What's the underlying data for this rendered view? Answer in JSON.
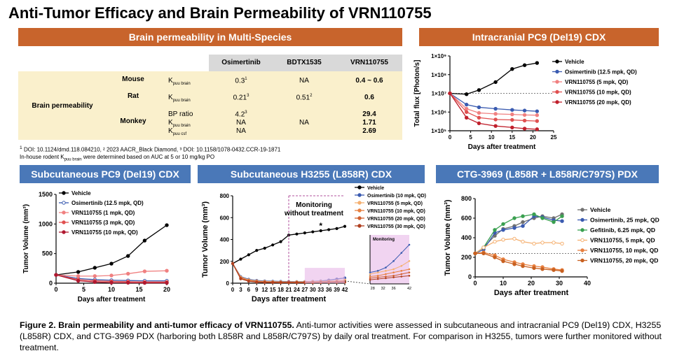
{
  "title": "Anti-Tumor Efficacy and Brain Permeability of VRN110755",
  "table": {
    "header": "Brain permeability in Multi-Species",
    "columns": [
      "Osimertinib",
      "BDTX1535",
      "VRN110755"
    ],
    "row_group": "Brain permeability",
    "rows": [
      {
        "species": "Mouse",
        "param": "K",
        "sub": "puu brain",
        "vals": [
          "0.3",
          "NA",
          "0.4 ~ 0.6"
        ],
        "sups": [
          "1",
          "",
          ""
        ]
      },
      {
        "species": "Rat",
        "param": "K",
        "sub": "puu brain",
        "vals": [
          "0.21",
          "0.51",
          "0.6"
        ],
        "sups": [
          "3",
          "2",
          ""
        ]
      },
      {
        "species": "Monkey",
        "param": "BP ratio",
        "sub": "",
        "vals": [
          "4.2",
          "",
          "29.4"
        ],
        "sups": [
          "3",
          "",
          ""
        ]
      },
      {
        "species": "",
        "param": "K",
        "sub": "puu brain",
        "vals": [
          "NA",
          "NA",
          "1.71"
        ],
        "sups": [
          "",
          "",
          ""
        ]
      },
      {
        "species": "",
        "param": "K",
        "sub": "puu csf",
        "vals": [
          "NA",
          "",
          "2.69"
        ],
        "sups": [
          "",
          "",
          ""
        ]
      }
    ],
    "footnote1": "DOI: 10.1124/dmd.118.084210, ² 2023 AACR_Black Diamond, ³ DOI: 10.1158/1078-0432.CCR-19-1871",
    "footnote1_sup": "1",
    "footnote2_a": "In-house rodent K",
    "footnote2_sub": "puu brain",
    "footnote2_b": " were determined based on AUC at 5 or 10 mg/kg PO"
  },
  "caption": {
    "bold": "Figure 2. Brain permeability and anti-tumor efficacy of VRN110755.",
    "text": " Anti-tumor activities were assessed in subcutaneous and intracranial PC9 (Del19) CDX, H3255 (L858R) CDX, and CTG-3969 PDX (harboring both L858R and L858R/C797S) by daily oral treatment. For comparison in H3255, tumors were further monitored without treatment."
  },
  "chart_data": [
    {
      "type": "line",
      "title": "Intracranial PC9 (Del19) CDX",
      "xlabel": "Days after treatment",
      "ylabel": "Total flux [Photon/s]",
      "yscale": "log",
      "xlim": [
        0,
        25
      ],
      "ylim": [
        100000,
        1000000000
      ],
      "xticks": [
        0,
        5,
        10,
        15,
        20,
        25
      ],
      "yticks": [
        100000,
        1000000,
        10000000,
        100000000,
        1000000000
      ],
      "yticklabels": [
        "1×10⁵",
        "1×10⁶",
        "1×10⁷",
        "1×10⁸",
        "1×10⁹"
      ],
      "x": [
        0,
        4,
        7,
        11,
        15,
        18,
        21
      ],
      "series": [
        {
          "name": "Vehicle",
          "color": "#000000",
          "values": [
            10000000,
            9000000,
            15000000,
            40000000,
            200000000,
            320000000,
            420000000
          ]
        },
        {
          "name": "Osimertinib (12.5 mpk, QD)",
          "color": "#3a5bb0",
          "values": [
            10000000,
            2500000,
            1800000,
            1500000,
            1300000,
            1200000,
            1100000
          ]
        },
        {
          "name": "VRN110755 (5 mpk, QD)",
          "color": "#f08080",
          "values": [
            10000000,
            1500000,
            900000,
            800000,
            750000,
            700000,
            680000
          ]
        },
        {
          "name": "VRN110755 (10 mpk, QD)",
          "color": "#e05050",
          "values": [
            10000000,
            1000000,
            500000,
            400000,
            380000,
            350000,
            330000
          ]
        },
        {
          "name": "VRN110755 (20 mpk, QD)",
          "color": "#c0202c",
          "values": [
            10000000,
            500000,
            250000,
            180000,
            150000,
            130000,
            120000
          ]
        }
      ]
    },
    {
      "type": "line",
      "title": "Subcutaneous PC9 (Del19) CDX",
      "xlabel": "Days after treatment",
      "ylabel": "Tumor Volume (mm³)",
      "xlim": [
        0,
        20
      ],
      "ylim": [
        0,
        1500
      ],
      "xticks": [
        0,
        5,
        10,
        15,
        20
      ],
      "yticks": [
        0,
        500,
        1000,
        1500
      ],
      "x": [
        0,
        4,
        7,
        10,
        13,
        16,
        20
      ],
      "series": [
        {
          "name": "Vehicle",
          "color": "#000000",
          "values": [
            140,
            190,
            260,
            330,
            460,
            720,
            980
          ]
        },
        {
          "name": "Osimertinib (12.5 mpk, QD)",
          "color": "#3a5bb0",
          "values": [
            140,
            80,
            60,
            50,
            45,
            40,
            40
          ]
        },
        {
          "name": "VRN110755 (1 mpk, QD)",
          "color": "#f08080",
          "values": [
            140,
            120,
            120,
            130,
            160,
            200,
            210
          ]
        },
        {
          "name": "VRN110755 (3 mpk, QD)",
          "color": "#e05050",
          "values": [
            140,
            60,
            40,
            30,
            25,
            20,
            20
          ]
        },
        {
          "name": "VRN110755 (10 mpk, QD)",
          "color": "#b01830",
          "values": [
            140,
            40,
            20,
            10,
            8,
            5,
            5
          ]
        }
      ]
    },
    {
      "type": "line",
      "title": "Subcutaneous H3255 (L858R) CDX",
      "xlabel": "Days after treatment",
      "ylabel": "Tumor Volume (mm³)",
      "xlim": [
        0,
        42
      ],
      "ylim": [
        0,
        800
      ],
      "xticks": [
        0,
        3,
        6,
        9,
        12,
        15,
        18,
        21,
        24,
        27,
        30,
        33,
        36,
        39,
        42
      ],
      "yticks": [
        0,
        200,
        400,
        600,
        800
      ],
      "annotation": "Monitoring without treatment",
      "inset_label": "Monitoring",
      "inset_xticks": [
        28,
        32,
        36,
        42
      ],
      "star": "*",
      "series": [
        {
          "name": "Vehicle",
          "color": "#000000",
          "x": [
            0,
            3,
            6,
            9,
            12,
            15,
            18,
            21,
            24,
            27,
            30,
            33,
            36,
            39,
            42
          ],
          "values": [
            180,
            220,
            260,
            300,
            320,
            350,
            380,
            440,
            450,
            460,
            470,
            480,
            490,
            500,
            520
          ]
        },
        {
          "name": "Osimertinib (10 mpk, QD)",
          "color": "#3a5bb0",
          "x": [
            0,
            3,
            6,
            9,
            12,
            15,
            18,
            21,
            24,
            27,
            30,
            33,
            36,
            39,
            42
          ],
          "values": [
            180,
            60,
            35,
            25,
            20,
            18,
            16,
            15,
            14,
            14,
            16,
            20,
            28,
            38,
            48
          ]
        },
        {
          "name": "VRN110755 (5 mpk, QD)",
          "color": "#f5b070",
          "x": [
            0,
            3,
            6,
            9,
            12,
            15,
            18,
            21,
            24,
            27,
            30,
            33,
            36,
            39,
            42
          ],
          "values": [
            180,
            55,
            30,
            20,
            16,
            14,
            12,
            12,
            12,
            12,
            14,
            16,
            18,
            22,
            28
          ]
        },
        {
          "name": "VRN110755 (10 mpk, QD)",
          "color": "#e88040",
          "x": [
            0,
            3,
            6,
            9,
            12,
            15,
            18,
            21,
            24,
            27,
            30,
            33,
            36,
            39,
            42
          ],
          "values": [
            180,
            50,
            25,
            16,
            12,
            10,
            9,
            9,
            9,
            9,
            10,
            12,
            14,
            16,
            18
          ]
        },
        {
          "name": "VRN110755 (20 mpk, QD)",
          "color": "#d06030",
          "x": [
            0,
            3,
            6,
            9,
            12,
            15,
            18,
            21,
            24,
            27,
            30,
            33,
            36,
            39,
            42
          ],
          "values": [
            180,
            45,
            20,
            12,
            9,
            8,
            7,
            7,
            7,
            7,
            8,
            9,
            10,
            12,
            14
          ]
        },
        {
          "name": "VRN110755 (30 mpk, QD)",
          "color": "#b04020",
          "x": [
            0,
            3,
            6,
            9,
            12,
            15,
            18,
            21,
            24,
            27,
            30,
            33,
            36,
            39,
            42
          ],
          "values": [
            180,
            40,
            18,
            10,
            7,
            6,
            5,
            5,
            5,
            5,
            6,
            7,
            8,
            9,
            10
          ]
        }
      ]
    },
    {
      "type": "line",
      "title": "CTG-3969 (L858R + L858R/C797S) PDX",
      "xlabel": "Days after treatment",
      "ylabel": "Tumor Volume (mm³)",
      "xlim": [
        0,
        40
      ],
      "ylim": [
        0,
        800
      ],
      "xticks": [
        0,
        10,
        20,
        30,
        40
      ],
      "yticks": [
        0,
        200,
        400,
        600,
        800
      ],
      "x": [
        0,
        3,
        7,
        10,
        14,
        17,
        21,
        24,
        28,
        31
      ],
      "series": [
        {
          "name": "Vehicle",
          "color": "#707070",
          "values": [
            240,
            300,
            420,
            490,
            520,
            560,
            600,
            620,
            600,
            640
          ]
        },
        {
          "name": "Osimertinib, 25 mpk, QD",
          "color": "#3a5bb0",
          "values": [
            240,
            280,
            450,
            480,
            500,
            520,
            620,
            610,
            580,
            570
          ]
        },
        {
          "name": "Gefitinib, 6.25 mpk, QD",
          "color": "#3aa050",
          "values": [
            240,
            300,
            480,
            540,
            600,
            620,
            640,
            600,
            560,
            620
          ]
        },
        {
          "name": "VRN110755, 5 mpk, QD",
          "color": "#f5b070",
          "values": [
            240,
            300,
            360,
            380,
            390,
            360,
            340,
            350,
            350,
            340
          ]
        },
        {
          "name": "VRN110755, 10 mpk, QD",
          "color": "#e88040",
          "values": [
            240,
            250,
            220,
            180,
            150,
            130,
            110,
            100,
            80,
            70
          ]
        },
        {
          "name": "VRN110755, 20 mpk, QD",
          "color": "#c86020",
          "values": [
            240,
            240,
            200,
            160,
            130,
            110,
            90,
            80,
            70,
            60
          ]
        }
      ]
    }
  ]
}
